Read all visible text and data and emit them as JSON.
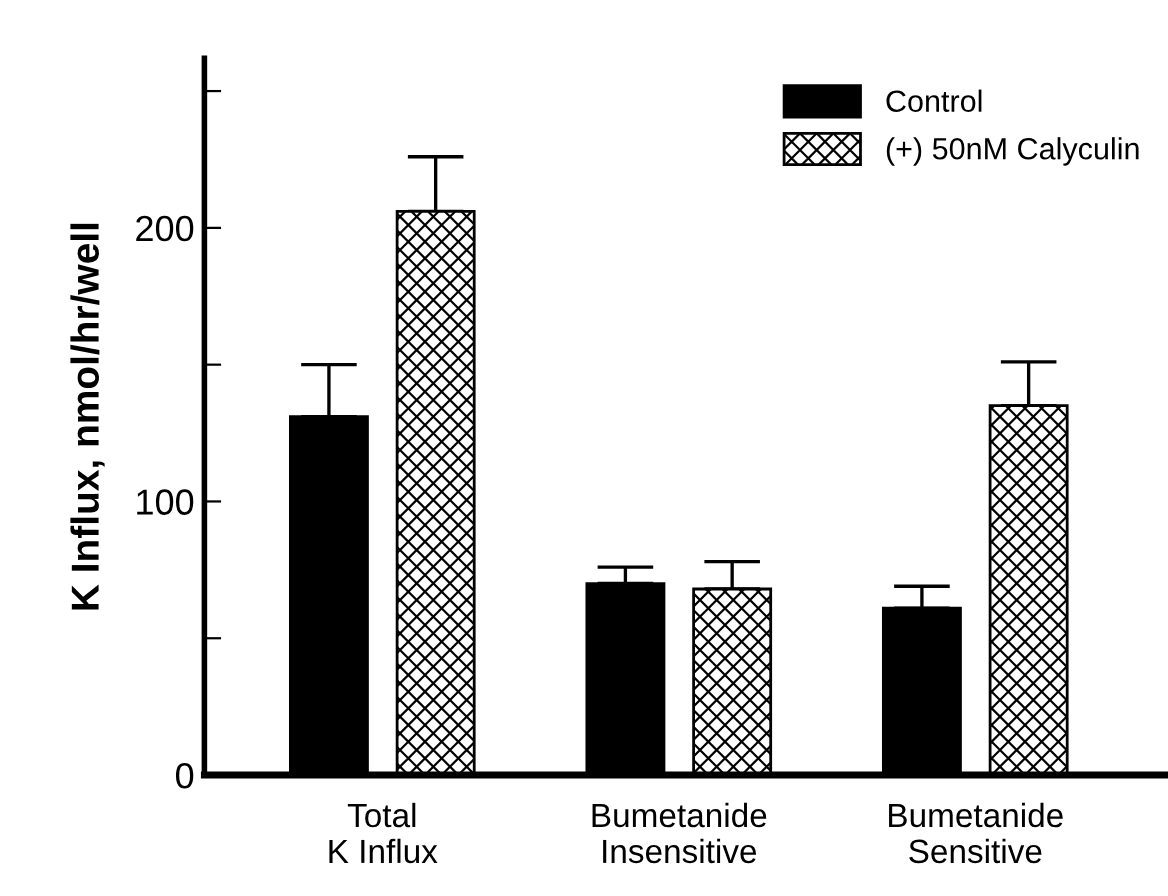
{
  "chart_data": {
    "type": "bar",
    "ylabel": "K Influx, nmol/hr/well",
    "categories": [
      "Total\nK Influx",
      "Bumetanide\nInsensitive",
      "Bumetanide\nSensitive"
    ],
    "series": [
      {
        "name": "Control",
        "color": "#000000",
        "values": [
          131,
          70,
          61
        ],
        "errors": [
          [
            131,
            150
          ],
          [
            70,
            76
          ],
          [
            61,
            69
          ]
        ]
      },
      {
        "name": "(+) 50nM Calyculin",
        "color": "#000000",
        "values": [
          206,
          68,
          135
        ],
        "errors": [
          [
            206,
            226
          ],
          [
            68,
            78
          ],
          [
            135,
            151
          ]
        ]
      }
    ],
    "ylim": [
      0,
      262
    ],
    "yticks": [
      0,
      {
        "value": 50,
        "label": null
      },
      100,
      {
        "value": 150,
        "label": null
      },
      200,
      {
        "value": 250,
        "label": null
      }
    ],
    "grid": false,
    "legend": "top right"
  }
}
